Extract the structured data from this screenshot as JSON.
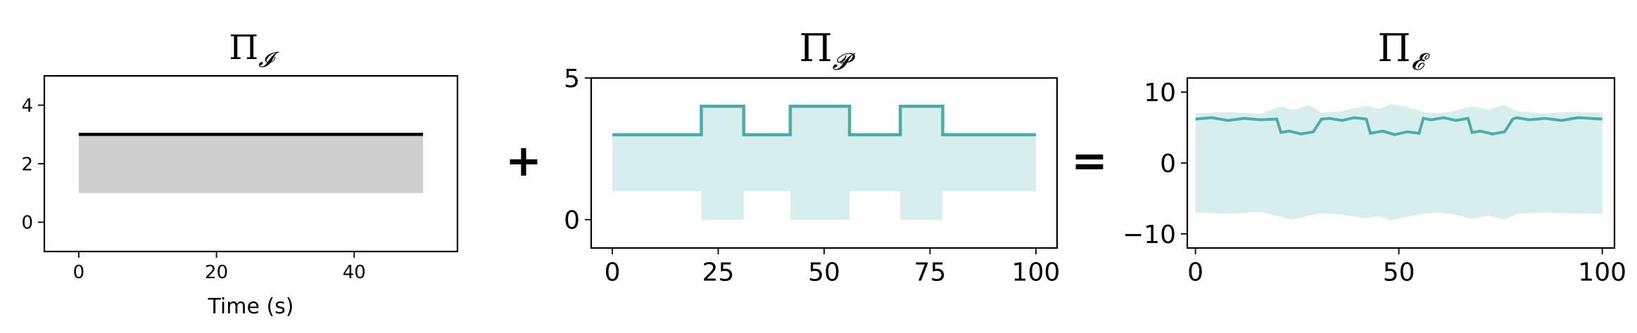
{
  "operators": [
    "+",
    "="
  ],
  "colors": {
    "gray_fill": "#cfcfcf",
    "black_line": "#000000",
    "teal_line": "#4aada6",
    "teal_fill": "#d7eeec"
  },
  "chart_data": [
    {
      "type": "area",
      "title": "Π",
      "title_subscript": "𝓘",
      "xlabel": "Time (s)",
      "ylabel": "",
      "xlim": [
        -5,
        55
      ],
      "ylim": [
        -1,
        5
      ],
      "xticks": [
        0,
        20,
        40
      ],
      "yticks": [
        0,
        2,
        4
      ],
      "line": {
        "x": [
          0,
          50
        ],
        "y": [
          3.0,
          3.0
        ]
      },
      "band": {
        "x": [
          0,
          50
        ],
        "lower": [
          1.0,
          1.0
        ],
        "upper": [
          3.0,
          3.0
        ]
      }
    },
    {
      "type": "area",
      "title": "Π",
      "title_subscript": "𝓟",
      "xlabel": "",
      "ylabel": "",
      "xlim": [
        -5,
        105
      ],
      "ylim": [
        -1,
        5
      ],
      "xticks": [
        0,
        25,
        50,
        75,
        100
      ],
      "yticks": [
        0,
        5
      ],
      "line": {
        "x": [
          0,
          21,
          21,
          31,
          31,
          42,
          42,
          56,
          56,
          68,
          68,
          78,
          78,
          100
        ],
        "y": [
          3,
          3,
          4,
          4,
          3,
          3,
          4,
          4,
          3,
          3,
          4,
          4,
          3,
          3
        ]
      },
      "band": {
        "x": [
          0,
          21,
          21,
          31,
          31,
          42,
          42,
          56,
          56,
          68,
          68,
          78,
          78,
          100
        ],
        "lower": [
          1,
          1,
          0,
          0,
          1,
          1,
          0,
          0,
          1,
          1,
          0,
          0,
          1,
          1
        ],
        "upper": [
          3,
          3,
          4,
          4,
          3,
          3,
          4,
          4,
          3,
          3,
          4,
          4,
          3,
          3
        ]
      }
    },
    {
      "type": "area",
      "title": "Π",
      "title_subscript": "𝓔",
      "xlabel": "",
      "ylabel": "",
      "xlim": [
        -2,
        103
      ],
      "ylim": [
        -12,
        12
      ],
      "xticks": [
        0,
        50,
        100
      ],
      "yticks": [
        -10,
        0,
        10
      ],
      "line": {
        "x": [
          0,
          4,
          8,
          12,
          16,
          20,
          21,
          23,
          26,
          29,
          31,
          33,
          36,
          39,
          42,
          43,
          46,
          49,
          52,
          55,
          56,
          58,
          61,
          64,
          67,
          68,
          70,
          73,
          76,
          78,
          79,
          82,
          86,
          90,
          94,
          100
        ],
        "y": [
          6.2,
          6.4,
          6.0,
          6.3,
          6.1,
          6.2,
          4.3,
          4.5,
          4.1,
          4.4,
          6.2,
          6.3,
          6.0,
          6.4,
          6.2,
          4.2,
          4.5,
          4.0,
          4.4,
          4.2,
          6.3,
          6.1,
          6.4,
          6.0,
          6.3,
          4.3,
          4.5,
          4.1,
          4.4,
          6.2,
          6.4,
          6.1,
          6.3,
          6.0,
          6.4,
          6.2
        ]
      },
      "band": {
        "x": [
          0,
          8,
          16,
          21,
          24,
          28,
          31,
          36,
          42,
          45,
          48,
          52,
          56,
          60,
          64,
          68,
          72,
          76,
          79,
          86,
          92,
          100
        ],
        "lower": [
          -7,
          -7.2,
          -6.9,
          -7.6,
          -8.0,
          -7.4,
          -7.1,
          -7.3,
          -7.8,
          -7.5,
          -8.1,
          -7.6,
          -7.2,
          -7.0,
          -7.3,
          -7.9,
          -7.4,
          -8.0,
          -7.2,
          -7.0,
          -7.1,
          -7.2
        ],
        "upper": [
          7,
          7.2,
          6.9,
          8.0,
          7.5,
          8.2,
          7.1,
          7.3,
          8.1,
          7.6,
          8.3,
          7.9,
          7.2,
          7.0,
          7.4,
          8.0,
          7.5,
          8.2,
          7.3,
          7.0,
          7.2,
          7.1
        ]
      }
    }
  ]
}
